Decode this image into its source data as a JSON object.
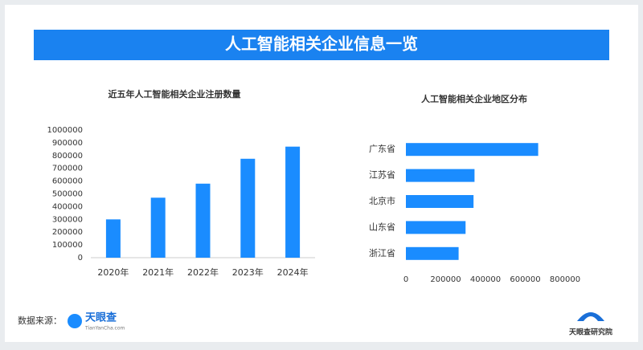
{
  "header": {
    "title": "人工智能相关企业信息一览"
  },
  "chart_data": [
    {
      "type": "bar",
      "orientation": "vertical",
      "title": "近五年人工智能相关企业注册数量",
      "categories": [
        "2020年",
        "2021年",
        "2022年",
        "2023年",
        "2024年"
      ],
      "values": [
        300000,
        470000,
        580000,
        775000,
        870000
      ],
      "color": "#1a8cff",
      "ylim": [
        0,
        1000000
      ],
      "yticks": [
        0,
        100000,
        200000,
        300000,
        400000,
        500000,
        600000,
        700000,
        800000,
        900000,
        1000000
      ]
    },
    {
      "type": "bar",
      "orientation": "horizontal",
      "title": "人工智能相关企业地区分布",
      "categories": [
        "广东省",
        "江苏省",
        "北京市",
        "山东省",
        "浙江省"
      ],
      "values": [
        665000,
        345000,
        340000,
        300000,
        265000
      ],
      "color": "#1a8cff",
      "xlim": [
        0,
        800000
      ],
      "xticks": [
        0,
        200000,
        400000,
        600000,
        800000
      ]
    }
  ],
  "footer": {
    "source_label": "数据来源：",
    "source_name": "天眼查",
    "source_url": "TianYanCha.com",
    "brand": "天眼查研究院"
  }
}
